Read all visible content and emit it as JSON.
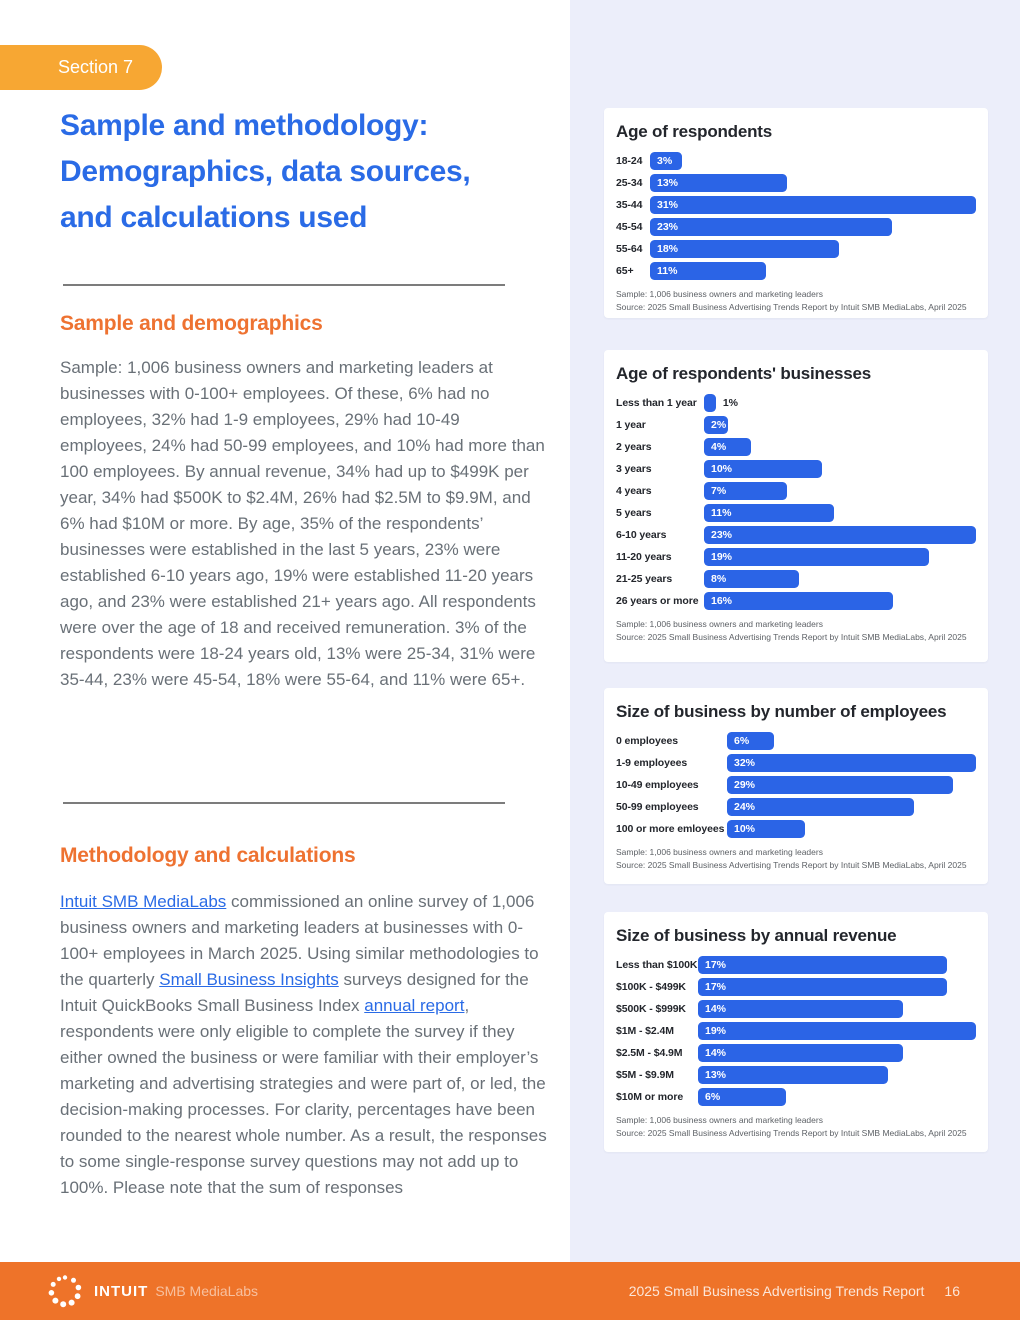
{
  "colors": {
    "bar_blue": "#2b64e6",
    "title_blue": "#2a6be6",
    "heading_orange": "#ee7231",
    "badge_amber": "#f7a733",
    "footer_orange": "#ee7329",
    "panel_lavender": "#eceefa"
  },
  "header": {
    "section_badge": "Section 7",
    "title_lines": [
      "Sample and methodology:",
      "Demographics, data sources,",
      "and calculations used"
    ]
  },
  "sample_section": {
    "heading": "Sample and demographics",
    "paragraph": "Sample: 1,006 business owners and marketing leaders at businesses with 0-100+ employees. Of these, 6% had no employees, 32% had 1-9 employees, 29% had 10-49 employees, 24% had 50-99 employees, and 10% had more than 100 employees. By annual revenue, 34% had up to $499K per year, 34% had $500K to $2.4M, 26% had $2.5M to $9.9M, and 6% had $10M or more. By age, 35% of the respondents’ businesses were established in the last 5 years, 23% were established 6-10 years ago, 19% were established 11-20 years ago, and 23% were established 21+ years ago. All respondents were over the age of 18 and received remuneration. 3% of the respondents were 18-24 years old, 13% were 25-34, 31% were 35-44, 23% were 45-54, 18% were 55-64, and 11% were 65+."
  },
  "methodology_section": {
    "heading": "Methodology and calculations",
    "segments": [
      {
        "text": "Intuit SMB MediaLabs",
        "link": true
      },
      {
        "text": " commissioned an online survey of 1,006 business owners and marketing leaders at businesses with 0-100+ employees in March 2025. Using similar methodologies to the quarterly "
      },
      {
        "text": "Small Business Insights",
        "link": true
      },
      {
        "text": " surveys designed for the Intuit QuickBooks Small Business Index "
      },
      {
        "text": "annual report",
        "link": true
      },
      {
        "text": ", respondents were only eligible to complete the survey if they either owned the business or were familiar with their employer’s marketing and advertising strategies and were part of, or led, the decision-making processes. For clarity, percentages have been rounded to the nearest whole number. As a result, the responses to some single-response survey questions may not add up to 100%. Please note that the sum of responses"
      }
    ]
  },
  "chart_data": [
    {
      "type": "bar",
      "orientation": "horizontal",
      "title": "Age of respondents",
      "categories": [
        "18-24",
        "25-34",
        "35-44",
        "45-54",
        "55-64",
        "65+"
      ],
      "values": [
        3,
        13,
        31,
        23,
        18,
        11
      ],
      "value_suffix": "%",
      "xlim": [
        0,
        31
      ],
      "bar_color": "#2b64e6",
      "sample_note": "Sample: 1,006 business owners and marketing leaders",
      "source_note": "Source: 2025 Small Business Advertising Trends Report by Intuit SMB MediaLabs, April 2025"
    },
    {
      "type": "bar",
      "orientation": "horizontal",
      "title": "Age of respondents' businesses",
      "categories": [
        "Less than 1 year",
        "1 year",
        "2 years",
        "3 years",
        "4 years",
        "5 years",
        "6-10 years",
        "11-20 years",
        "21-25 years",
        "26 years or more"
      ],
      "values": [
        1,
        2,
        4,
        10,
        7,
        11,
        23,
        19,
        8,
        16
      ],
      "value_suffix": "%",
      "xlim": [
        0,
        23
      ],
      "bar_color": "#2b64e6",
      "sample_note": "Sample: 1,006 business owners and marketing leaders",
      "source_note": "Source: 2025 Small Business Advertising Trends Report by Intuit SMB MediaLabs, April 2025"
    },
    {
      "type": "bar",
      "orientation": "horizontal",
      "title": "Size of business by number of employees",
      "categories": [
        "0 employees",
        "1-9 employees",
        "10-49 employees",
        "50-99 employees",
        "100 or more emloyees"
      ],
      "values": [
        6,
        32,
        29,
        24,
        10
      ],
      "value_suffix": "%",
      "xlim": [
        0,
        32
      ],
      "bar_color": "#2b64e6",
      "sample_note": "Sample: 1,006 business owners and marketing leaders",
      "source_note": "Source: 2025 Small Business Advertising Trends Report by Intuit SMB MediaLabs, April 2025"
    },
    {
      "type": "bar",
      "orientation": "horizontal",
      "title": "Size of business by annual revenue",
      "categories": [
        "Less than $100K",
        "$100K - $499K",
        "$500K - $999K",
        "$1M - $2.4M",
        "$2.5M - $4.9M",
        "$5M - $9.9M",
        "$10M or more"
      ],
      "values": [
        17,
        17,
        14,
        19,
        14,
        13,
        6
      ],
      "value_suffix": "%",
      "xlim": [
        0,
        19
      ],
      "bar_color": "#2b64e6",
      "sample_note": "Sample: 1,006 business owners and marketing leaders",
      "source_note": "Source: 2025 Small Business Advertising Trends Report by Intuit SMB MediaLabs, April 2025"
    }
  ],
  "footer": {
    "brand": "intuit",
    "brand_sub": "SMB MediaLabs",
    "report_title": "2025 Small Business Advertising Trends Report",
    "page_number": "16"
  }
}
